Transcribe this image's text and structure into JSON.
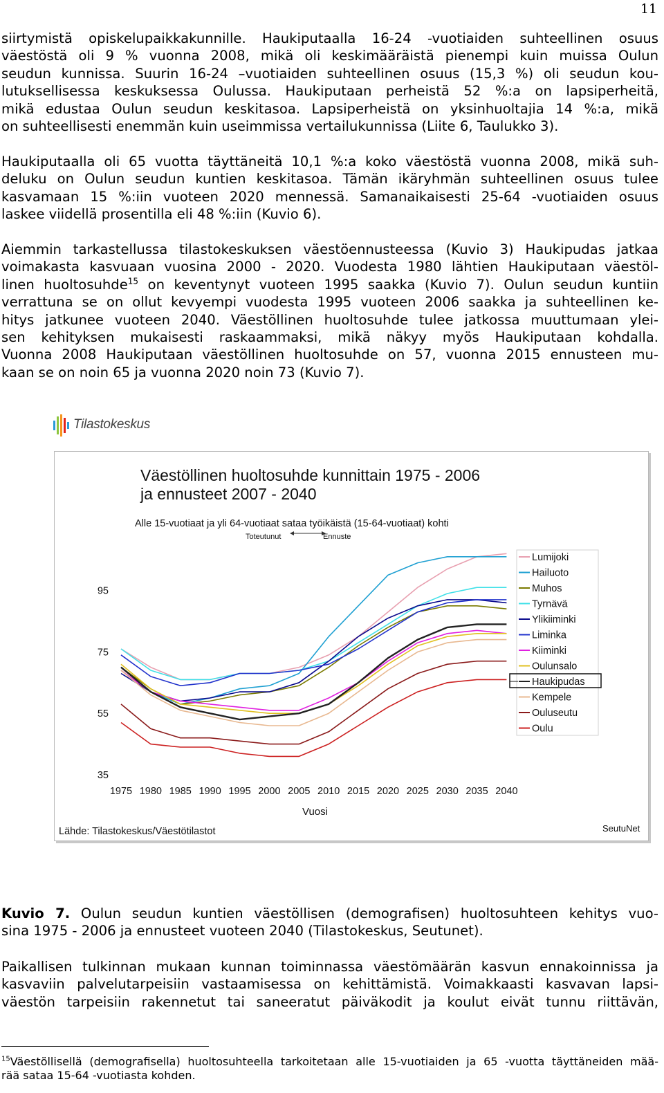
{
  "page": {
    "number": "11",
    "paragraphs": [
      [
        "siirtymistä opiskelupaikkakunnille. Haukiputaalla 16-24 -vuotiaiden suhteellinen osuus",
        "väestöstä oli 9 % vuonna 2008, mikä oli keskimääräistä pienempi kuin muissa Oulun",
        "seudun kunnissa. Suurin 16-24 –vuotiaiden suhteellinen osuus (15,3 %) oli seudun kou-",
        "lutuksellisessa keskuksessa Oulussa. Haukiputaan perheistä 52 %:a on lapsiperheitä,",
        "mikä edustaa Oulun seudun keskitasoa. Lapsiperheistä on yksinhuoltajia 14 %:a, mikä",
        "on suhteellisesti enemmän kuin useimmissa vertailukunnissa (Liite 6, Taulukko 3)."
      ],
      [
        "Haukiputaalla oli 65 vuotta täyttäneitä 10,1 %:a koko väestöstä vuonna 2008, mikä suh-",
        "deluku on Oulun seudun kuntien keskitasoa. Tämän ikäryhmän suhteellinen osuus tulee",
        "kasvamaan 15 %:iin vuoteen 2020 mennessä. Samanaikaisesti 25-64 -vuotiaiden osuus",
        "laskee viidellä prosentilla eli 48 %:iin (Kuvio 6)."
      ],
      [
        "Aiemmin tarkastellussa tilastokeskuksen väestöennusteessa (Kuvio 3) Haukipudas jatkaa",
        "voimakasta kasvuaan vuosina 2000 - 2020. Vuodesta 1980 lähtien Haukiputaan väestöl-",
        "on keventynyt vuoteen 1995 saakka (Kuvio 7). Oulun seudun kuntiin",
        "verrattuna se on ollut kevyempi vuodesta 1995 vuoteen 2006 saakka ja suhteellinen ke-",
        "hitys jatkunee vuoteen 2040. Väestöllinen huoltosuhde tulee jatkossa muuttumaan ylei-",
        "sen kehityksen mukaisesti raskaammaksi, mikä näkyy myös Haukiputaan kohdalla.",
        "Vuonna 2008 Haukiputaan väestöllinen huoltosuhde on 57, vuonna 2015 ennusteen mu-",
        "kaan se on noin 65 ja vuonna 2020 noin 73 (Kuvio 7)."
      ]
    ],
    "para3_line3_start": "linen huoltosuhde",
    "footnote_ref": "15",
    "caption_label": "Kuvio 7.",
    "caption_line1": " Oulun seudun kuntien väestöllisen (demografisen) huoltosuhteen kehitys vuo-",
    "caption_line2": "sina 1975 - 2006 ja ennusteet vuoteen 2040 (Tilastokeskus, Seutunet).",
    "after_paragraph": [
      "Paikallisen tulkinnan mukaan kunnan toiminnassa väestömäärän kasvun ennakoinnissa ja",
      "kasvaviin palvelutarpeisiin vastaamisessa on kehittämistä. Voimakkaasti kasvavan lapsi-",
      "väestön tarpeisiin rakennetut tai saneeratut päiväkodit ja koulut eivät tunnu riittävän,"
    ],
    "footnote_number": "15",
    "footnote_line1": "Väestöllisellä (demografisella) huoltosuhteella tarkoitetaan alle 15-vuotiaiden ja 65 -vuotta täyttäneiden mää-",
    "footnote_line2": "rää sataa 15-64 -vuotiasta kohden."
  },
  "logo": {
    "text": "Tilastokeskus",
    "colors": [
      "#2a9bd6",
      "#8dc63f",
      "#f7941d",
      "#e2231a"
    ]
  },
  "chart_data": {
    "type": "line",
    "title_line1": "Väestöllinen huoltosuhde kunnittain 1975 - 2006",
    "title_line2": "ja ennusteet 2007 - 2040",
    "subtitle": "Alle 15-vuotiaat ja yli 64-vuotiaat sataa työikäistä (15-64-vuotiaat) kohti",
    "toteutunut_label": "Toteutunut",
    "ennuste_label": "Ennuste",
    "xlabel": "Vuosi",
    "ylabel": "",
    "source": "Lähde: Tilastokeskus/Väestötilastot",
    "brand": "SeutuNet",
    "xlim": [
      1975,
      2041
    ],
    "ylim": [
      35,
      110
    ],
    "yticks": [
      35,
      55,
      75,
      95
    ],
    "xticks": [
      1975,
      1980,
      1985,
      1990,
      1995,
      2000,
      2005,
      2010,
      2015,
      2020,
      2025,
      2030,
      2035,
      2040
    ],
    "highlight": "Haukipudas",
    "x": [
      1975,
      1980,
      1985,
      1990,
      1995,
      2000,
      2005,
      2010,
      2015,
      2020,
      2025,
      2030,
      2035,
      2040
    ],
    "series": [
      {
        "name": "Lumijoki",
        "color": "#e8a0b0",
        "values": [
          76,
          70,
          66,
          66,
          68,
          68,
          70,
          74,
          80,
          88,
          96,
          102,
          106,
          107
        ]
      },
      {
        "name": "Hailuoto",
        "color": "#1fa0d2",
        "values": [
          70,
          62,
          58,
          60,
          63,
          64,
          68,
          80,
          90,
          100,
          104,
          106,
          106,
          106
        ]
      },
      {
        "name": "Muhos",
        "color": "#7a7a00",
        "values": [
          70,
          63,
          58,
          59,
          61,
          62,
          64,
          70,
          77,
          83,
          88,
          90,
          90,
          89
        ]
      },
      {
        "name": "Tyrnävä",
        "color": "#40e0e8",
        "values": [
          76,
          69,
          66,
          66,
          68,
          68,
          69,
          72,
          78,
          84,
          90,
          94,
          96,
          96
        ]
      },
      {
        "name": "Ylikiiminki",
        "color": "#0a0a8c",
        "values": [
          68,
          62,
          59,
          60,
          62,
          62,
          65,
          72,
          80,
          86,
          90,
          92,
          92,
          91
        ]
      },
      {
        "name": "Liminka",
        "color": "#2233cc",
        "values": [
          74,
          67,
          64,
          65,
          68,
          68,
          69,
          71,
          76,
          82,
          88,
          91,
          92,
          92
        ]
      },
      {
        "name": "Kiiminki",
        "color": "#e020e0",
        "values": [
          69,
          62,
          59,
          58,
          57,
          56,
          56,
          60,
          65,
          72,
          78,
          81,
          82,
          81
        ]
      },
      {
        "name": "Oulunsalo",
        "color": "#e0c020",
        "values": [
          71,
          63,
          58,
          57,
          56,
          55,
          55,
          58,
          64,
          71,
          77,
          80,
          81,
          81
        ]
      },
      {
        "name": "Haukipudas",
        "color": "#222222",
        "values": [
          70,
          62,
          57,
          55,
          53,
          54,
          55,
          58,
          65,
          73,
          79,
          83,
          84,
          84
        ]
      },
      {
        "name": "Kempele",
        "color": "#e8b890",
        "values": [
          69,
          61,
          56,
          54,
          52,
          51,
          51,
          55,
          62,
          69,
          75,
          78,
          79,
          79
        ]
      },
      {
        "name": "Ouluseutu",
        "color": "#8a1a1a",
        "values": [
          58,
          50,
          47,
          47,
          46,
          45,
          45,
          49,
          56,
          63,
          68,
          71,
          72,
          72
        ]
      },
      {
        "name": "Oulu",
        "color": "#cc2020",
        "values": [
          52,
          45,
          44,
          44,
          42,
          41,
          41,
          45,
          51,
          57,
          62,
          65,
          66,
          66
        ]
      }
    ],
    "grid": false,
    "legend_position": "right"
  }
}
